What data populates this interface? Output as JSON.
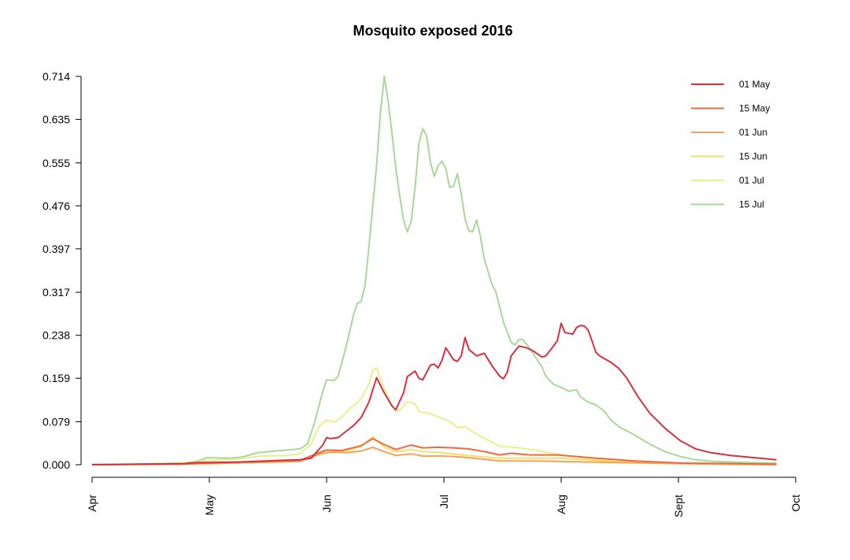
{
  "chart_data": {
    "type": "line",
    "title": "Mosquito exposed 2016",
    "xlabel": "",
    "ylabel": "",
    "x_ticks": [
      "Apr",
      "May",
      "Jun",
      "Jul",
      "Aug",
      "Sept",
      "Oct"
    ],
    "x_range": [
      "2016-04-01",
      "2016-10-01"
    ],
    "y_ticks": [
      "0.000",
      "0.079",
      "0.159",
      "0.238",
      "0.317",
      "0.397",
      "0.476",
      "0.555",
      "0.635",
      "0.714"
    ],
    "ylim": [
      0,
      0.714
    ],
    "grid": false,
    "legend_position": "top-right",
    "series": [
      {
        "name": "01 May",
        "color": "#d7303f",
        "points": [
          [
            "2016-04-01",
            0.0
          ],
          [
            "2016-04-25",
            0.002
          ],
          [
            "2016-04-28",
            0.004
          ],
          [
            "2016-05-01",
            0.004
          ],
          [
            "2016-05-10",
            0.005
          ],
          [
            "2016-05-20",
            0.008
          ],
          [
            "2016-05-25",
            0.009
          ],
          [
            "2016-05-28",
            0.012
          ],
          [
            "2016-05-31",
            0.036
          ],
          [
            "2016-06-01",
            0.05
          ],
          [
            "2016-06-02",
            0.048
          ],
          [
            "2016-06-04",
            0.05
          ],
          [
            "2016-06-06",
            0.061
          ],
          [
            "2016-06-08",
            0.072
          ],
          [
            "2016-06-10",
            0.087
          ],
          [
            "2016-06-12",
            0.115
          ],
          [
            "2016-06-14",
            0.16
          ],
          [
            "2016-06-16",
            0.132
          ],
          [
            "2016-06-18",
            0.108
          ],
          [
            "2016-06-19",
            0.101
          ],
          [
            "2016-06-21",
            0.132
          ],
          [
            "2016-06-22",
            0.162
          ],
          [
            "2016-06-24",
            0.172
          ],
          [
            "2016-06-25",
            0.159
          ],
          [
            "2016-06-26",
            0.156
          ],
          [
            "2016-06-28",
            0.183
          ],
          [
            "2016-06-29",
            0.185
          ],
          [
            "2016-06-30",
            0.178
          ],
          [
            "2016-07-01",
            0.192
          ],
          [
            "2016-07-02",
            0.215
          ],
          [
            "2016-07-04",
            0.193
          ],
          [
            "2016-07-05",
            0.19
          ],
          [
            "2016-07-06",
            0.2
          ],
          [
            "2016-07-07",
            0.234
          ],
          [
            "2016-07-08",
            0.212
          ],
          [
            "2016-07-10",
            0.2
          ],
          [
            "2016-07-12",
            0.205
          ],
          [
            "2016-07-14",
            0.182
          ],
          [
            "2016-07-16",
            0.163
          ],
          [
            "2016-07-17",
            0.158
          ],
          [
            "2016-07-18",
            0.17
          ],
          [
            "2016-07-19",
            0.2
          ],
          [
            "2016-07-21",
            0.218
          ],
          [
            "2016-07-23",
            0.215
          ],
          [
            "2016-07-25",
            0.208
          ],
          [
            "2016-07-27",
            0.198
          ],
          [
            "2016-07-28",
            0.2
          ],
          [
            "2016-07-30",
            0.218
          ],
          [
            "2016-07-31",
            0.228
          ],
          [
            "2016-08-01",
            0.26
          ],
          [
            "2016-08-02",
            0.243
          ],
          [
            "2016-08-04",
            0.24
          ],
          [
            "2016-08-05",
            0.252
          ],
          [
            "2016-08-06",
            0.256
          ],
          [
            "2016-08-07",
            0.255
          ],
          [
            "2016-08-08",
            0.248
          ],
          [
            "2016-08-09",
            0.228
          ],
          [
            "2016-08-10",
            0.207
          ],
          [
            "2016-08-11",
            0.2
          ],
          [
            "2016-08-14",
            0.188
          ],
          [
            "2016-08-16",
            0.177
          ],
          [
            "2016-08-18",
            0.16
          ],
          [
            "2016-08-21",
            0.125
          ],
          [
            "2016-08-24",
            0.095
          ],
          [
            "2016-08-28",
            0.067
          ],
          [
            "2016-09-01",
            0.044
          ],
          [
            "2016-09-05",
            0.029
          ],
          [
            "2016-09-09",
            0.022
          ],
          [
            "2016-09-14",
            0.017
          ],
          [
            "2016-09-20",
            0.013
          ],
          [
            "2016-09-26",
            0.009
          ]
        ]
      },
      {
        "name": "15 May",
        "color": "#ef6b3b",
        "points": [
          [
            "2016-04-01",
            0.0
          ],
          [
            "2016-04-25",
            0.001
          ],
          [
            "2016-05-01",
            0.003
          ],
          [
            "2016-05-15",
            0.006
          ],
          [
            "2016-05-25",
            0.008
          ],
          [
            "2016-05-30",
            0.022
          ],
          [
            "2016-06-01",
            0.027
          ],
          [
            "2016-06-05",
            0.026
          ],
          [
            "2016-06-10",
            0.035
          ],
          [
            "2016-06-13",
            0.048
          ],
          [
            "2016-06-16",
            0.037
          ],
          [
            "2016-06-19",
            0.028
          ],
          [
            "2016-06-23",
            0.036
          ],
          [
            "2016-06-26",
            0.031
          ],
          [
            "2016-06-30",
            0.032
          ],
          [
            "2016-07-04",
            0.031
          ],
          [
            "2016-07-08",
            0.029
          ],
          [
            "2016-07-12",
            0.024
          ],
          [
            "2016-07-16",
            0.018
          ],
          [
            "2016-07-19",
            0.021
          ],
          [
            "2016-07-24",
            0.018
          ],
          [
            "2016-07-31",
            0.018
          ],
          [
            "2016-08-05",
            0.015
          ],
          [
            "2016-08-10",
            0.012
          ],
          [
            "2016-08-20",
            0.007
          ],
          [
            "2016-09-01",
            0.003
          ],
          [
            "2016-09-26",
            0.001
          ]
        ]
      },
      {
        "name": "01 Jun",
        "color": "#f4a259",
        "points": [
          [
            "2016-04-01",
            0.0
          ],
          [
            "2016-05-01",
            0.002
          ],
          [
            "2016-05-25",
            0.006
          ],
          [
            "2016-05-30",
            0.019
          ],
          [
            "2016-06-02",
            0.023
          ],
          [
            "2016-06-06",
            0.022
          ],
          [
            "2016-06-10",
            0.025
          ],
          [
            "2016-06-13",
            0.032
          ],
          [
            "2016-06-16",
            0.024
          ],
          [
            "2016-06-19",
            0.017
          ],
          [
            "2016-06-23",
            0.02
          ],
          [
            "2016-06-26",
            0.016
          ],
          [
            "2016-07-01",
            0.016
          ],
          [
            "2016-07-06",
            0.014
          ],
          [
            "2016-07-12",
            0.01
          ],
          [
            "2016-07-16",
            0.007
          ],
          [
            "2016-07-25",
            0.007
          ],
          [
            "2016-08-01",
            0.006
          ],
          [
            "2016-08-15",
            0.004
          ],
          [
            "2016-09-01",
            0.002
          ],
          [
            "2016-09-26",
            0.0
          ]
        ]
      },
      {
        "name": "15 Jun",
        "color": "#fadc6e",
        "points": [
          [
            "2016-04-01",
            0.0
          ],
          [
            "2016-05-01",
            0.002
          ],
          [
            "2016-05-25",
            0.007
          ],
          [
            "2016-05-30",
            0.021
          ],
          [
            "2016-06-02",
            0.024
          ],
          [
            "2016-06-06",
            0.025
          ],
          [
            "2016-06-10",
            0.034
          ],
          [
            "2016-06-13",
            0.051
          ],
          [
            "2016-06-16",
            0.032
          ],
          [
            "2016-06-19",
            0.024
          ],
          [
            "2016-06-23",
            0.028
          ],
          [
            "2016-06-26",
            0.024
          ],
          [
            "2016-07-01",
            0.022
          ],
          [
            "2016-07-06",
            0.018
          ],
          [
            "2016-07-12",
            0.014
          ],
          [
            "2016-07-16",
            0.012
          ],
          [
            "2016-07-25",
            0.012
          ],
          [
            "2016-08-01",
            0.012
          ],
          [
            "2016-08-15",
            0.006
          ],
          [
            "2016-09-01",
            0.002
          ],
          [
            "2016-09-26",
            0.0
          ]
        ]
      },
      {
        "name": "01 Jul",
        "color": "#e8f08c",
        "points": [
          [
            "2016-04-01",
            0.0
          ],
          [
            "2016-04-25",
            0.003
          ],
          [
            "2016-05-01",
            0.008
          ],
          [
            "2016-05-08",
            0.01
          ],
          [
            "2016-05-15",
            0.016
          ],
          [
            "2016-05-22",
            0.017
          ],
          [
            "2016-05-25",
            0.02
          ],
          [
            "2016-05-28",
            0.038
          ],
          [
            "2016-05-30",
            0.07
          ],
          [
            "2016-06-01",
            0.082
          ],
          [
            "2016-06-03",
            0.078
          ],
          [
            "2016-06-05",
            0.088
          ],
          [
            "2016-06-07",
            0.103
          ],
          [
            "2016-06-08",
            0.108
          ],
          [
            "2016-06-10",
            0.122
          ],
          [
            "2016-06-12",
            0.148
          ],
          [
            "2016-06-13",
            0.174
          ],
          [
            "2016-06-14",
            0.178
          ],
          [
            "2016-06-15",
            0.158
          ],
          [
            "2016-06-17",
            0.122
          ],
          [
            "2016-06-19",
            0.098
          ],
          [
            "2016-06-20",
            0.1
          ],
          [
            "2016-06-22",
            0.116
          ],
          [
            "2016-06-24",
            0.112
          ],
          [
            "2016-06-25",
            0.098
          ],
          [
            "2016-06-28",
            0.094
          ],
          [
            "2016-07-01",
            0.085
          ],
          [
            "2016-07-03",
            0.08
          ],
          [
            "2016-07-05",
            0.068
          ],
          [
            "2016-07-07",
            0.07
          ],
          [
            "2016-07-10",
            0.056
          ],
          [
            "2016-07-13",
            0.045
          ],
          [
            "2016-07-16",
            0.034
          ],
          [
            "2016-07-20",
            0.032
          ],
          [
            "2016-07-25",
            0.027
          ],
          [
            "2016-08-01",
            0.018
          ],
          [
            "2016-08-10",
            0.01
          ],
          [
            "2016-08-20",
            0.005
          ],
          [
            "2016-09-05",
            0.002
          ],
          [
            "2016-09-26",
            0.0
          ]
        ]
      },
      {
        "name": "15 Jul",
        "color": "#a8d898",
        "points": [
          [
            "2016-04-01",
            0.0
          ],
          [
            "2016-04-15",
            0.001
          ],
          [
            "2016-04-24",
            0.003
          ],
          [
            "2016-04-28",
            0.006
          ],
          [
            "2016-05-01",
            0.013
          ],
          [
            "2016-05-07",
            0.012
          ],
          [
            "2016-05-10",
            0.014
          ],
          [
            "2016-05-14",
            0.022
          ],
          [
            "2016-05-20",
            0.026
          ],
          [
            "2016-05-25",
            0.029
          ],
          [
            "2016-05-27",
            0.038
          ],
          [
            "2016-05-29",
            0.08
          ],
          [
            "2016-05-31",
            0.135
          ],
          [
            "2016-06-01",
            0.156
          ],
          [
            "2016-06-03",
            0.155
          ],
          [
            "2016-06-04",
            0.163
          ],
          [
            "2016-06-06",
            0.215
          ],
          [
            "2016-06-08",
            0.275
          ],
          [
            "2016-06-09",
            0.297
          ],
          [
            "2016-06-10",
            0.3
          ],
          [
            "2016-06-11",
            0.33
          ],
          [
            "2016-06-12",
            0.4
          ],
          [
            "2016-06-13",
            0.475
          ],
          [
            "2016-06-14",
            0.55
          ],
          [
            "2016-06-15",
            0.648
          ],
          [
            "2016-06-16",
            0.714
          ],
          [
            "2016-06-17",
            0.668
          ],
          [
            "2016-06-18",
            0.61
          ],
          [
            "2016-06-19",
            0.545
          ],
          [
            "2016-06-20",
            0.495
          ],
          [
            "2016-06-21",
            0.45
          ],
          [
            "2016-06-22",
            0.428
          ],
          [
            "2016-06-23",
            0.448
          ],
          [
            "2016-06-24",
            0.51
          ],
          [
            "2016-06-25",
            0.59
          ],
          [
            "2016-06-26",
            0.618
          ],
          [
            "2016-06-27",
            0.605
          ],
          [
            "2016-06-28",
            0.556
          ],
          [
            "2016-06-29",
            0.53
          ],
          [
            "2016-06-30",
            0.55
          ],
          [
            "2016-07-01",
            0.558
          ],
          [
            "2016-07-02",
            0.545
          ],
          [
            "2016-07-03",
            0.51
          ],
          [
            "2016-07-04",
            0.512
          ],
          [
            "2016-07-05",
            0.535
          ],
          [
            "2016-07-06",
            0.498
          ],
          [
            "2016-07-07",
            0.452
          ],
          [
            "2016-07-08",
            0.43
          ],
          [
            "2016-07-09",
            0.428
          ],
          [
            "2016-07-10",
            0.45
          ],
          [
            "2016-07-11",
            0.42
          ],
          [
            "2016-07-12",
            0.378
          ],
          [
            "2016-07-14",
            0.332
          ],
          [
            "2016-07-15",
            0.318
          ],
          [
            "2016-07-17",
            0.262
          ],
          [
            "2016-07-19",
            0.225
          ],
          [
            "2016-07-20",
            0.22
          ],
          [
            "2016-07-21",
            0.23
          ],
          [
            "2016-07-22",
            0.23
          ],
          [
            "2016-07-24",
            0.213
          ],
          [
            "2016-07-26",
            0.19
          ],
          [
            "2016-07-27",
            0.18
          ],
          [
            "2016-07-28",
            0.163
          ],
          [
            "2016-07-30",
            0.148
          ],
          [
            "2016-08-01",
            0.142
          ],
          [
            "2016-08-03",
            0.135
          ],
          [
            "2016-08-05",
            0.138
          ],
          [
            "2016-08-06",
            0.125
          ],
          [
            "2016-08-08",
            0.115
          ],
          [
            "2016-08-10",
            0.11
          ],
          [
            "2016-08-12",
            0.1
          ],
          [
            "2016-08-14",
            0.082
          ],
          [
            "2016-08-16",
            0.07
          ],
          [
            "2016-08-20",
            0.055
          ],
          [
            "2016-08-24",
            0.038
          ],
          [
            "2016-08-28",
            0.024
          ],
          [
            "2016-09-01",
            0.015
          ],
          [
            "2016-09-05",
            0.009
          ],
          [
            "2016-09-10",
            0.006
          ],
          [
            "2016-09-18",
            0.004
          ],
          [
            "2016-09-26",
            0.003
          ]
        ]
      }
    ]
  }
}
